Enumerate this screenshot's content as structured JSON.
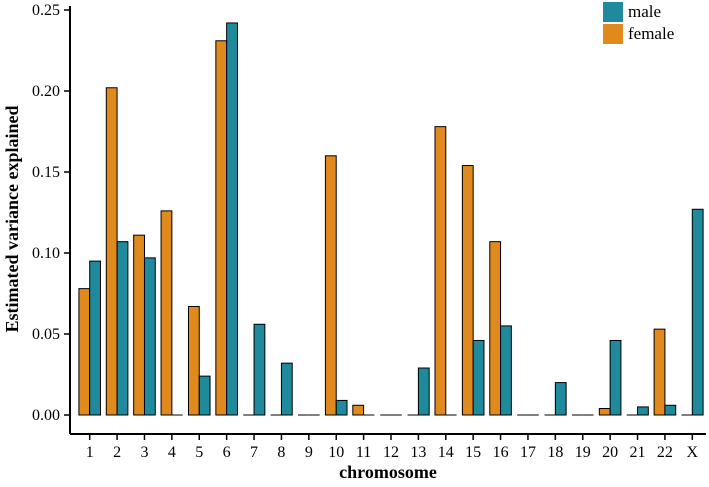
{
  "colors": {
    "male": "#1f8a9c",
    "female": "#e08a1e"
  },
  "chart_data": {
    "type": "bar",
    "title": "",
    "xlabel": "chromosome",
    "ylabel": "Estimated variance explained",
    "ylim": [
      0,
      0.25
    ],
    "yticks": [
      "0.00",
      "0.05",
      "0.10",
      "0.15",
      "0.20",
      "0.25"
    ],
    "ytick_values": [
      0,
      0.05,
      0.1,
      0.15,
      0.2,
      0.25
    ],
    "categories": [
      "1",
      "2",
      "3",
      "4",
      "5",
      "6",
      "7",
      "8",
      "9",
      "10",
      "11",
      "12",
      "13",
      "14",
      "15",
      "16",
      "17",
      "18",
      "19",
      "20",
      "21",
      "22",
      "X"
    ],
    "legend_position": "top-right",
    "grid": false,
    "series": [
      {
        "name": "female",
        "color": "#e08a1e",
        "values": [
          0.078,
          0.202,
          0.111,
          0.126,
          0.067,
          0.231,
          0,
          0,
          0,
          0.16,
          0.006,
          0,
          0,
          0.178,
          0.154,
          0.107,
          0,
          0,
          0,
          0.004,
          0,
          0.053,
          0
        ]
      },
      {
        "name": "male",
        "color": "#1f8a9c",
        "values": [
          0.095,
          0.107,
          0.097,
          0,
          0.024,
          0.242,
          0.056,
          0.032,
          0,
          0.009,
          0,
          0,
          0.029,
          0,
          0.046,
          0.055,
          0,
          0.02,
          0,
          0.046,
          0.005,
          0.006,
          0.127
        ]
      }
    ],
    "legend": [
      {
        "label": "male",
        "color": "#1f8a9c"
      },
      {
        "label": "female",
        "color": "#e08a1e"
      }
    ]
  }
}
